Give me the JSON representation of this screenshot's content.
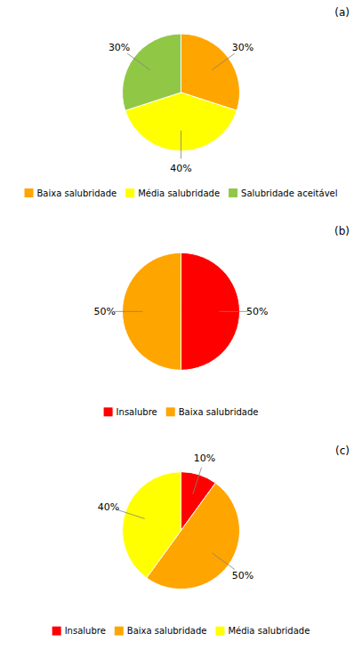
{
  "chart_data": [
    {
      "type": "pie",
      "title": "(a)",
      "categories": [
        "Baixa salubridade",
        "Média salubridade",
        "Salubridade aceitável"
      ],
      "values": [
        30,
        40,
        30
      ],
      "value_labels": [
        "30%",
        "40%",
        "30%"
      ],
      "colors": [
        "#FFA500",
        "#FFFF00",
        "#90C846"
      ],
      "data_labels": true,
      "legend": "bottom"
    },
    {
      "type": "pie",
      "title": "(b)",
      "categories": [
        "Insalubre",
        "Baixa salubridade"
      ],
      "values": [
        50,
        50
      ],
      "value_labels": [
        "50%",
        "50%"
      ],
      "colors": [
        "#FF0000",
        "#FFA500"
      ],
      "data_labels": true,
      "legend": "bottom"
    },
    {
      "type": "pie",
      "title": "(c)",
      "categories": [
        "Insalubre",
        "Baixa salubridade",
        "Média salubridade"
      ],
      "values": [
        10,
        50,
        40
      ],
      "value_labels": [
        "10%",
        "50%",
        "40%"
      ],
      "colors": [
        "#FF0000",
        "#FFA500",
        "#FFFF00"
      ],
      "data_labels": true,
      "legend": "bottom"
    }
  ]
}
